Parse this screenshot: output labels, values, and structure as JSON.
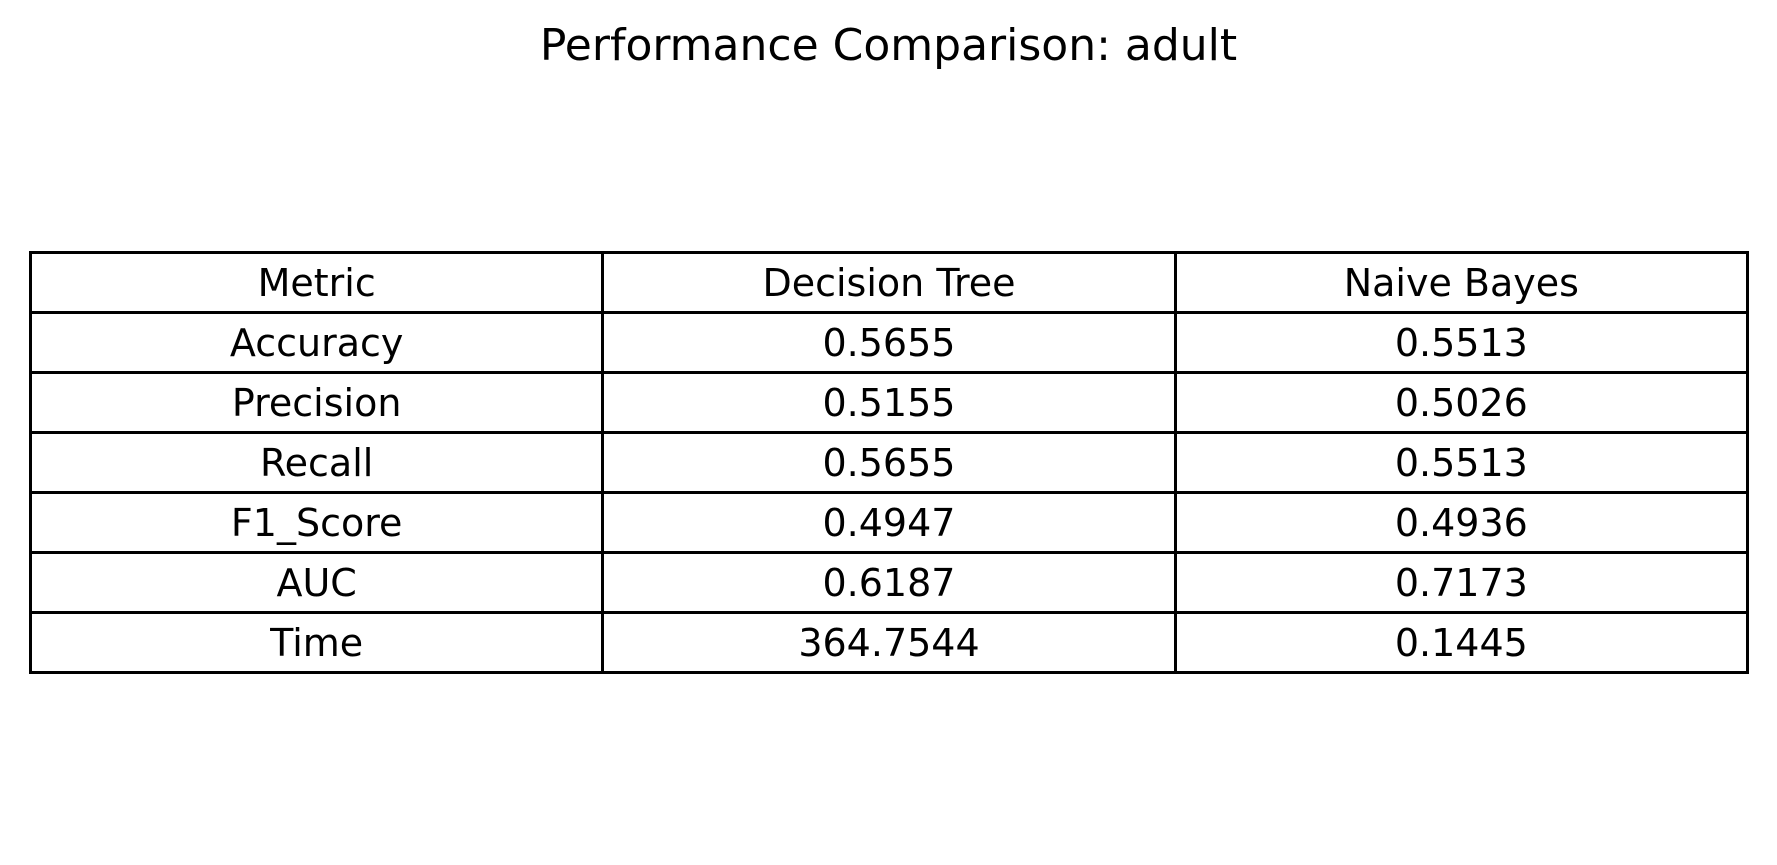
{
  "chart_data": {
    "type": "table",
    "title": "Performance Comparison: adult",
    "columns": [
      "Metric",
      "Decision Tree",
      "Naive Bayes"
    ],
    "rows": [
      [
        "Accuracy",
        "0.5655",
        "0.5513"
      ],
      [
        "Precision",
        "0.5155",
        "0.5026"
      ],
      [
        "Recall",
        "0.5655",
        "0.5513"
      ],
      [
        "F1_Score",
        "0.4947",
        "0.4936"
      ],
      [
        "AUC",
        "0.6187",
        "0.7173"
      ],
      [
        "Time",
        "364.7544",
        "0.1445"
      ]
    ]
  }
}
